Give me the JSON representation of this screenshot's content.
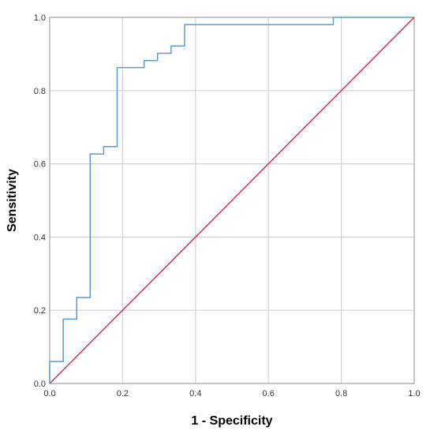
{
  "chart_data": {
    "type": "line",
    "title": "",
    "xlabel": "1 - Specificity",
    "ylabel": "Sensitivity",
    "xlim": [
      0,
      1
    ],
    "ylim": [
      0,
      1
    ],
    "grid": true,
    "x_ticks": [
      0.0,
      0.2,
      0.4,
      0.6,
      0.8,
      1.0
    ],
    "y_ticks": [
      0.0,
      0.2,
      0.4,
      0.6,
      0.8,
      1.0
    ],
    "x_tick_labels": [
      "0.0",
      "0.2",
      "0.4",
      "0.6",
      "0.8",
      "1.0"
    ],
    "y_tick_labels": [
      "0.0",
      "0.2",
      "0.4",
      "0.6",
      "0.8",
      "1.0"
    ],
    "series": [
      {
        "color": "#5b9bd5",
        "style": "step",
        "points": [
          [
            0.0,
            0.0
          ],
          [
            0.0,
            0.06
          ],
          [
            0.037,
            0.06
          ],
          [
            0.037,
            0.176
          ],
          [
            0.074,
            0.176
          ],
          [
            0.074,
            0.235
          ],
          [
            0.111,
            0.235
          ],
          [
            0.111,
            0.627
          ],
          [
            0.148,
            0.627
          ],
          [
            0.148,
            0.647
          ],
          [
            0.185,
            0.647
          ],
          [
            0.185,
            0.863
          ],
          [
            0.259,
            0.863
          ],
          [
            0.259,
            0.882
          ],
          [
            0.296,
            0.882
          ],
          [
            0.296,
            0.902
          ],
          [
            0.333,
            0.902
          ],
          [
            0.333,
            0.922
          ],
          [
            0.37,
            0.922
          ],
          [
            0.37,
            0.98
          ],
          [
            0.778,
            0.98
          ],
          [
            0.778,
            1.0
          ],
          [
            1.0,
            1.0
          ]
        ]
      },
      {
        "color": "#d6305a",
        "style": "line",
        "points": [
          [
            0.0,
            0.0
          ],
          [
            1.0,
            1.0
          ]
        ]
      }
    ]
  }
}
